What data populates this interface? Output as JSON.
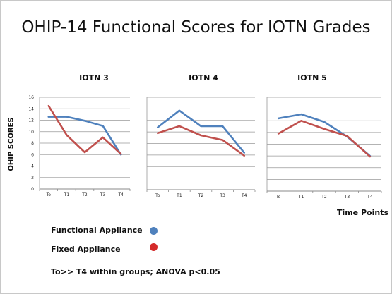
{
  "title": "OHIP-14 Functional Scores for IOTN Grades",
  "ylabel": "OHIP SCORES",
  "xlabel": "Time Points",
  "footnote": "To>> T4 within groups; ANOVA p<0.05",
  "legend": [
    {
      "label": "Functional Appliance",
      "color": "#4f81bd"
    },
    {
      "label": "Fixed Appliance",
      "color": "#c0392b"
    }
  ],
  "chart_data": [
    {
      "type": "line",
      "title": "IOTN 3",
      "x": [
        "To",
        "T1",
        "T2",
        "T3",
        "T4"
      ],
      "ylim": [
        0,
        16
      ],
      "yticks": [
        0,
        2,
        4,
        6,
        8,
        10,
        12,
        14,
        16
      ],
      "grid": true,
      "series": [
        {
          "name": "Functional Appliance",
          "color": "#4f81bd",
          "values": [
            12.6,
            12.6,
            11.9,
            11.0,
            6.0
          ]
        },
        {
          "name": "Fixed Appliance",
          "color": "#c0504d",
          "values": [
            14.5,
            9.4,
            6.4,
            9.0,
            6.1
          ]
        }
      ]
    },
    {
      "type": "line",
      "title": "IOTN 4",
      "x": [
        "To",
        "T1",
        "T2",
        "T3",
        "T4"
      ],
      "ylim": [
        0,
        16
      ],
      "grid": true,
      "series": [
        {
          "name": "Functional Appliance",
          "color": "#4f81bd",
          "values": [
            10.8,
            13.7,
            11.0,
            11.0,
            6.4
          ]
        },
        {
          "name": "Fixed Appliance",
          "color": "#c0504d",
          "values": [
            9.8,
            11.0,
            9.4,
            8.6,
            5.9
          ]
        }
      ]
    },
    {
      "type": "line",
      "title": "IOTN 5",
      "x": [
        "To",
        "T1",
        "T2",
        "T3",
        "T4"
      ],
      "ylim": [
        0,
        16
      ],
      "grid": true,
      "series": [
        {
          "name": "Functional Appliance",
          "color": "#4f81bd",
          "values": [
            12.4,
            13.1,
            11.8,
            9.3,
            6.0
          ]
        },
        {
          "name": "Fixed Appliance",
          "color": "#c0504d",
          "values": [
            9.8,
            12.0,
            10.6,
            9.4,
            5.9
          ]
        }
      ]
    }
  ]
}
